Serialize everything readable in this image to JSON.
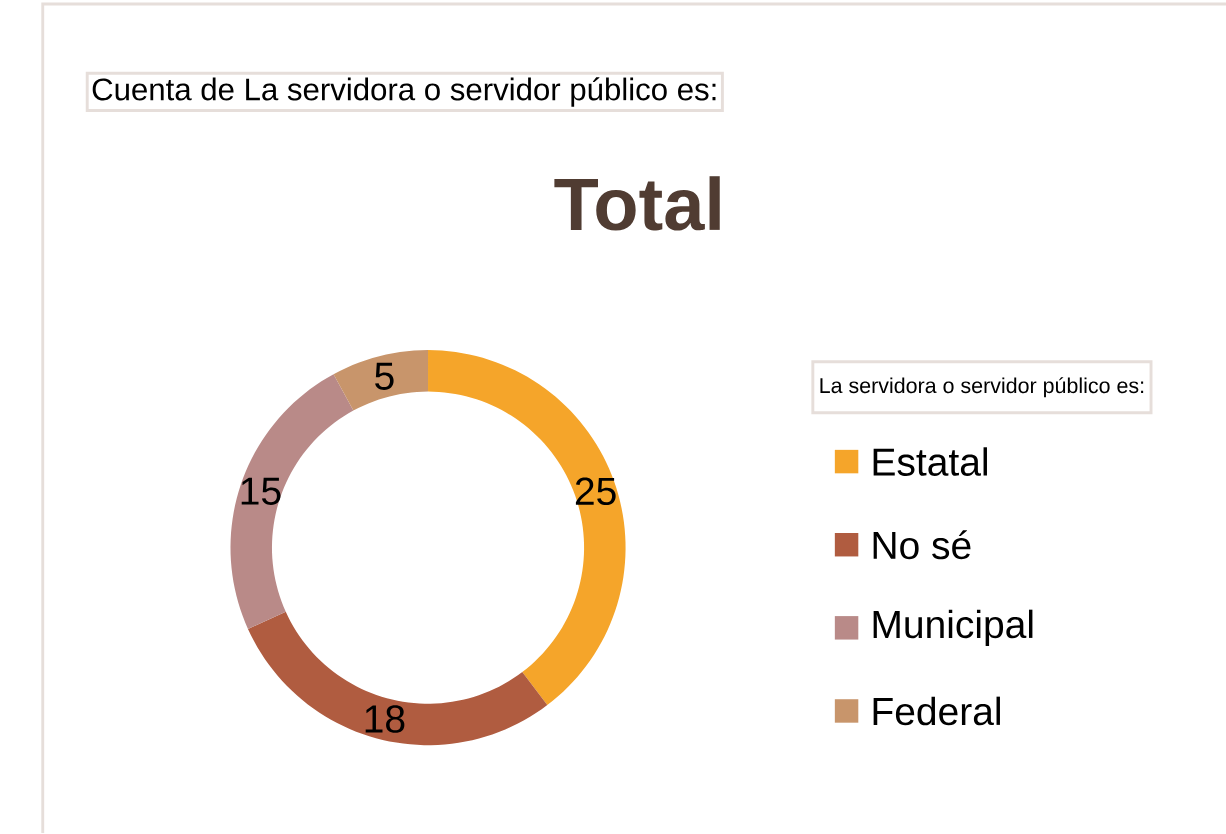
{
  "chart_data": {
    "type": "donut",
    "title": "Total",
    "annotations": [
      "Cuenta de La servidora o servidor público es:"
    ],
    "legend_title": "La servidora o servidor público es:",
    "categories": [
      "Estatal",
      "No sé",
      "Municipal",
      "Federal"
    ],
    "values": [
      25,
      18,
      15,
      5
    ],
    "colors": [
      "#f5a52a",
      "#b05c40",
      "#b98a88",
      "#c8956b"
    ],
    "data_labels": true,
    "legend": "right"
  }
}
